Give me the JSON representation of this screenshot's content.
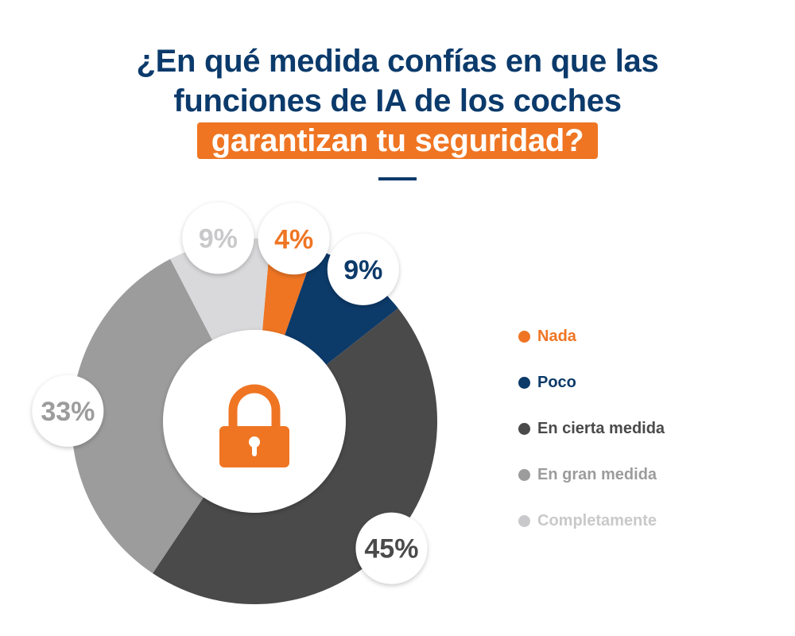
{
  "title": {
    "line1": "¿En qué medida confías en que las",
    "line2": "funciones de IA de los coches",
    "highlight": "garantizan tu seguridad?"
  },
  "colors": {
    "title": "#0b3a6b",
    "accent": "#ef7523"
  },
  "center_icon": "lock-icon",
  "chart_data": {
    "type": "pie",
    "variant": "donut",
    "title": "¿En qué medida confías en que las funciones de IA de los coches garantizan tu seguridad?",
    "unit": "%",
    "slices": [
      {
        "label": "Nada",
        "value": 4,
        "display": "4%",
        "color": "#ef7523",
        "text_color": "#ef7523",
        "legend_color": "#ef7523"
      },
      {
        "label": "Poco",
        "value": 9,
        "display": "9%",
        "color": "#0c3a69",
        "text_color": "#0c3a69",
        "legend_color": "#0c3a69"
      },
      {
        "label": "En cierta medida",
        "value": 45,
        "display": "45%",
        "color": "#4a4a4a",
        "text_color": "#4a4a4a",
        "legend_color": "#4a4a4a"
      },
      {
        "label": "En gran medida",
        "value": 33,
        "display": "33%",
        "color": "#9c9c9c",
        "text_color": "#9c9c9c",
        "legend_color": "#9c9c9c"
      },
      {
        "label": "Completamente",
        "value": 9,
        "display": "9%",
        "color": "#d9d9db",
        "text_color": "#c9c9cb",
        "legend_color": "#c9c9cb"
      }
    ],
    "legend_position": "right"
  }
}
